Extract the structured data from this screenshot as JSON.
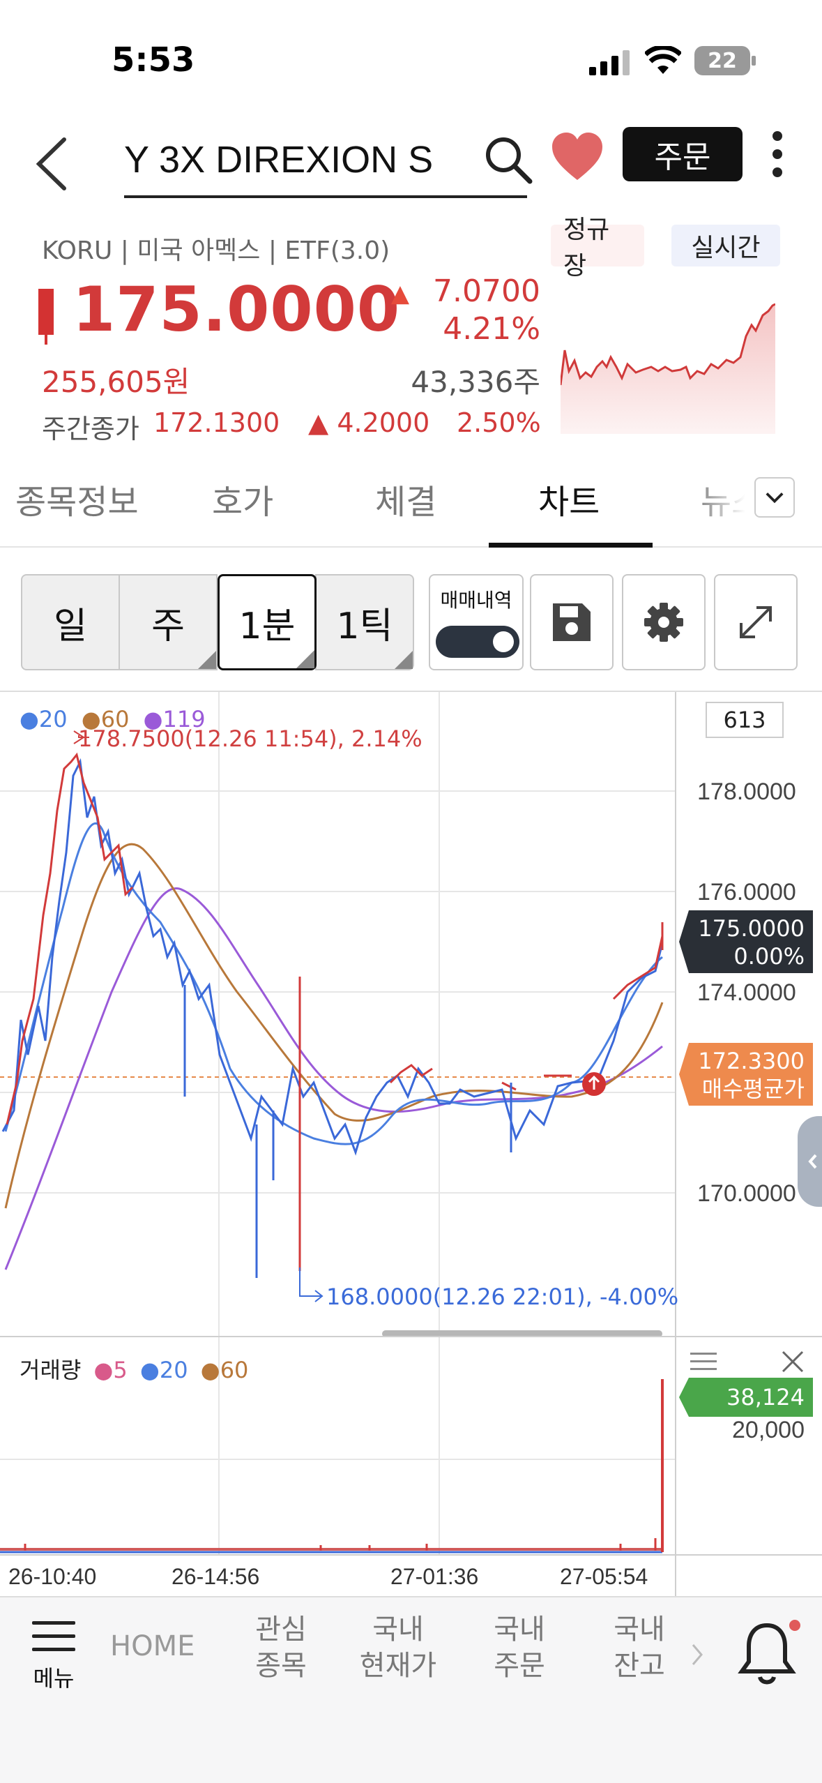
{
  "status_bar": {
    "time": "5:53",
    "battery": "22"
  },
  "header": {
    "title": "Y 3X    DIREXION S",
    "order_label": "주문"
  },
  "stock": {
    "meta": "KORU | 미국 아멕스 | ETF(3.0)",
    "badges": [
      "정규장",
      "실시간"
    ],
    "price": "175.0000",
    "change": "7.0700",
    "change_pct": "4.21%",
    "krw": "255,605원",
    "volume": "43,336주",
    "weekly_label": "주간종가",
    "weekly_price": "172.1300",
    "weekly_change": "4.2000",
    "weekly_pct": "2.50%"
  },
  "tabs": [
    "종목정보",
    "호가",
    "체결",
    "차트",
    "뉴스"
  ],
  "toolbar": {
    "periods": [
      "일",
      "주",
      "1분",
      "1틱"
    ],
    "trade_history_label": "매매내역"
  },
  "chart": {
    "count": "613",
    "legend": [
      {
        "label": "20",
        "color": "#4a7fe0"
      },
      {
        "label": "60",
        "color": "#b8783a"
      },
      {
        "label": "119",
        "color": "#9a5ad8"
      }
    ],
    "y_labels": [
      "178.0000",
      "176.0000",
      "174.0000",
      "170.0000"
    ],
    "current_price": "175.0000",
    "current_pct": "0.00%",
    "avg_price": "172.3300",
    "avg_label": "매수평균가",
    "high_annotation": "178.7500(12.26 11:54), 2.14%",
    "low_annotation": "168.0000(12.26 22:01), -4.00%"
  },
  "volume": {
    "label": "거래량",
    "legend": [
      {
        "label": "5",
        "color": "#d85a8a"
      },
      {
        "label": "20",
        "color": "#4a7fe0"
      },
      {
        "label": "60",
        "color": "#b8783a"
      }
    ],
    "current": "38,124",
    "y_label": "20,000"
  },
  "x_labels": [
    "26-10:40",
    "26-14:56",
    "27-01:36",
    "27-05:54"
  ],
  "nav": {
    "menu": "메뉴",
    "home": "HOME",
    "items": [
      [
        "관심",
        "종목"
      ],
      [
        "국내",
        "현재가"
      ],
      [
        "국내",
        "주문"
      ],
      [
        "국내",
        "잔고"
      ]
    ]
  }
}
